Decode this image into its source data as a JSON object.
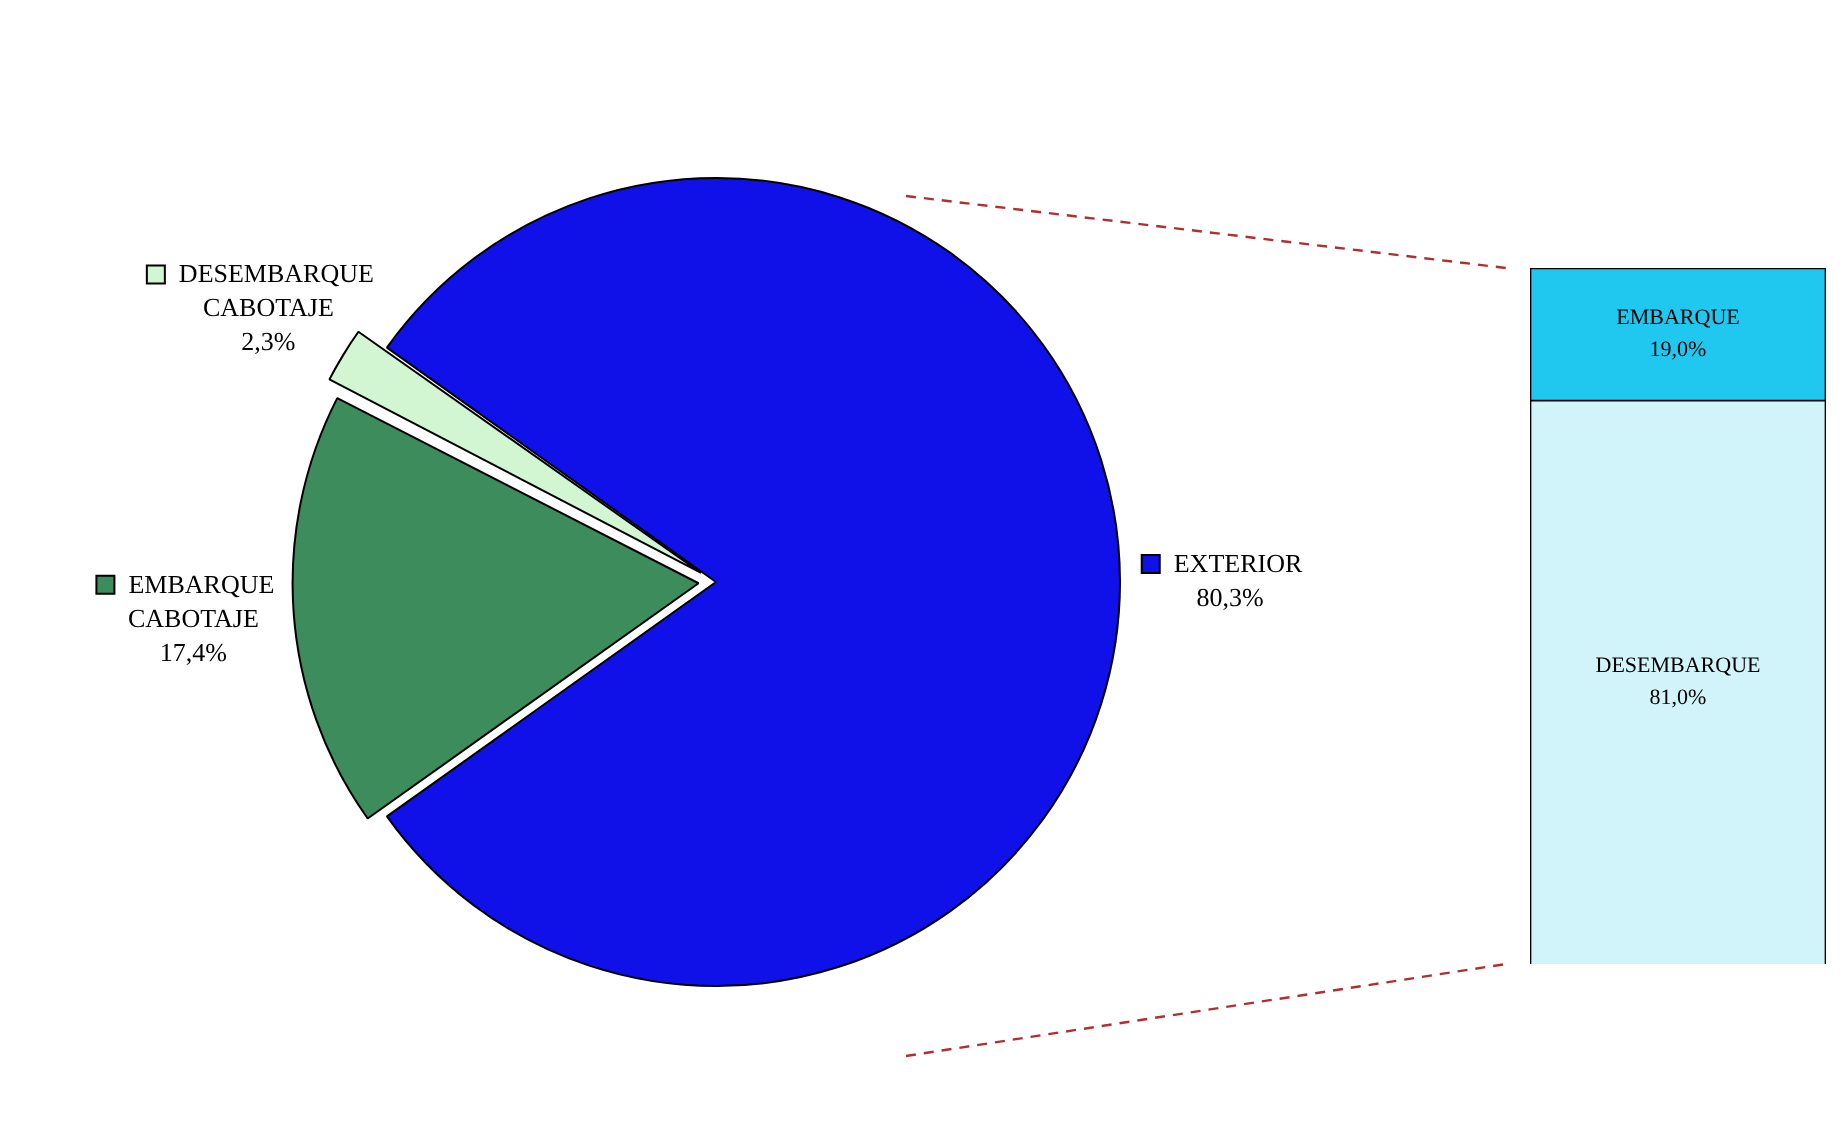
{
  "chart_data": [
    {
      "type": "pie",
      "categories": [
        "EXTERIOR",
        "EMBARQUE CABOTAJE",
        "DESEMBARQUE CABOTAJE"
      ],
      "values": [
        80.3,
        17.4,
        2.3
      ],
      "colors": [
        "#1010e8",
        "#3d8c5c",
        "#d2f5d2"
      ],
      "value_labels": [
        "80,3%",
        "17,4%",
        "2,3%"
      ],
      "legend": "left"
    },
    {
      "type": "bar",
      "stacked": true,
      "categories": [
        null
      ],
      "tick_labels": false,
      "series": [
        {
          "name": "DESEMBARQUE",
          "color": "#d0f4fa",
          "values": [
            81.0
          ],
          "value_labels": [
            "81,0%"
          ]
        },
        {
          "name": "EMBARQUE",
          "color": "#20c8f0",
          "values": [
            19.0
          ],
          "value_labels": [
            "19,0%"
          ]
        }
      ]
    }
  ]
}
